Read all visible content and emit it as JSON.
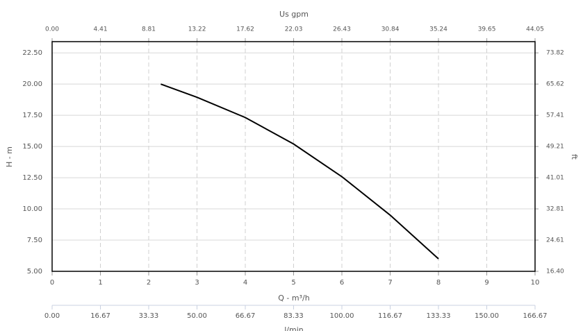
{
  "chart_data": {
    "type": "line",
    "color": "#000000",
    "grid": true,
    "x": [
      2.25,
      3,
      4,
      5,
      6,
      7,
      8
    ],
    "values": [
      20.0,
      18.94,
      17.32,
      15.2,
      12.58,
      9.5,
      6.0
    ],
    "xlabel": "Q - m³/h",
    "xlim": [
      0,
      10
    ],
    "xticks": [
      0,
      1,
      2,
      3,
      4,
      5,
      6,
      7,
      8,
      9,
      10
    ],
    "ylabel": "H - m",
    "ylim": [
      5,
      23.4
    ],
    "yticks": [
      {
        "value": 5,
        "label": "5.00"
      },
      {
        "value": 7.5,
        "label": "7.50"
      },
      {
        "value": 10,
        "label": "10.00"
      },
      {
        "value": 12.5,
        "label": "12.50"
      },
      {
        "value": 15,
        "label": "15.00"
      },
      {
        "value": 17.5,
        "label": "17.50"
      },
      {
        "value": 20,
        "label": "20.00"
      },
      {
        "value": 22.5,
        "label": "22.50"
      }
    ],
    "y2label": "ft",
    "y2lim": [
      16.4,
      76.77
    ],
    "y2ticks": [
      {
        "value": 16.4,
        "label": "16.40"
      },
      24.61,
      32.81,
      41.01,
      49.21,
      57.41,
      65.62,
      73.82
    ],
    "top_axis": {
      "label": "Us gpm",
      "lim": [
        0,
        44.05
      ],
      "ticks": [
        {
          "value": 0,
          "label": "0.00"
        },
        4.41,
        8.81,
        13.22,
        17.62,
        22.03,
        26.43,
        30.84,
        35.24,
        39.65,
        44.05
      ]
    },
    "bottom_axis2": {
      "label": "l/min",
      "lim": [
        0,
        166.67
      ],
      "ticks": [
        {
          "value": 0,
          "label": "0.00"
        },
        16.67,
        33.33,
        {
          "value": 50,
          "label": "50.00"
        },
        66.67,
        83.33,
        {
          "value": 100,
          "label": "100.00"
        },
        116.67,
        133.33,
        {
          "value": 150,
          "label": "150.00"
        },
        166.67
      ]
    }
  }
}
